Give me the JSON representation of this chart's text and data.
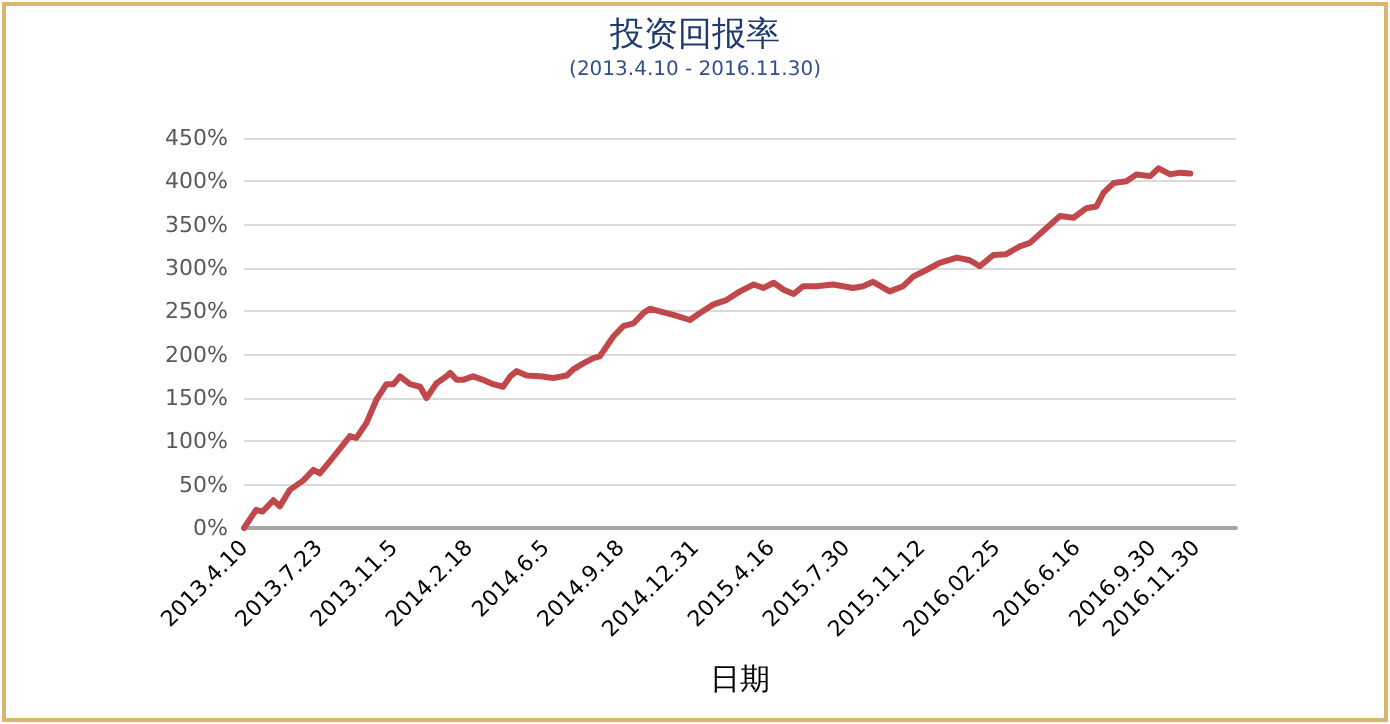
{
  "chart_data": {
    "type": "line",
    "title": "投资回报率",
    "subtitle": "(2013.4.10 - 2016.11.30)",
    "xlabel": "日期",
    "x": [
      "2013-04-10",
      "2013-04-27",
      "2013-05-06",
      "2013-05-21",
      "2013-05-30",
      "2013-06-13",
      "2013-07-02",
      "2013-07-16",
      "2013-07-25",
      "2013-08-13",
      "2013-09-05",
      "2013-09-14",
      "2013-09-28",
      "2013-10-12",
      "2013-10-26",
      "2013-11-05",
      "2013-11-14",
      "2013-11-28",
      "2013-12-12",
      "2013-12-21",
      "2014-01-04",
      "2014-01-18",
      "2014-01-23",
      "2014-02-01",
      "2014-02-10",
      "2014-02-24",
      "2014-03-10",
      "2014-03-24",
      "2014-04-07",
      "2014-04-17",
      "2014-04-26",
      "2014-05-10",
      "2014-05-29",
      "2014-06-16",
      "2014-07-05",
      "2014-07-14",
      "2014-07-28",
      "2014-08-11",
      "2014-08-20",
      "2014-08-30",
      "2014-09-08",
      "2014-09-22",
      "2014-10-06",
      "2014-10-20",
      "2014-10-29",
      "2014-11-12",
      "2014-12-01",
      "2014-12-24",
      "2015-01-07",
      "2015-01-26",
      "2015-02-13",
      "2015-03-04",
      "2015-03-23",
      "2015-04-06",
      "2015-04-20",
      "2015-05-04",
      "2015-05-18",
      "2015-05-31",
      "2015-06-19",
      "2015-07-12",
      "2015-08-09",
      "2015-08-23",
      "2015-09-06",
      "2015-09-29",
      "2015-10-18",
      "2015-11-01",
      "2015-11-20",
      "2015-12-08",
      "2016-01-01",
      "2016-01-19",
      "2016-02-02",
      "2016-02-21",
      "2016-03-10",
      "2016-03-29",
      "2016-04-12",
      "2016-05-01",
      "2016-05-24",
      "2016-06-12",
      "2016-06-30",
      "2016-07-14",
      "2016-07-24",
      "2016-08-07",
      "2016-08-25",
      "2016-09-08",
      "2016-09-27",
      "2016-10-09",
      "2016-10-25",
      "2016-11-08",
      "2016-11-22"
    ],
    "series": [
      {
        "color": "#c0474a",
        "values": [
          0,
          21,
          19,
          32,
          25,
          44,
          55,
          67,
          63,
          82,
          106,
          104,
          121,
          148,
          166,
          166,
          175,
          166,
          163,
          150,
          167,
          175,
          179,
          171,
          171,
          175,
          171,
          166,
          163,
          175,
          181,
          176,
          175,
          173,
          176,
          183,
          190,
          196,
          198,
          210,
          221,
          233,
          236,
          248,
          253,
          250,
          246,
          240,
          248,
          258,
          263,
          273,
          281,
          277,
          283,
          275,
          270,
          279,
          279,
          281,
          277,
          279,
          284,
          273,
          279,
          290,
          298,
          306,
          312,
          309,
          302,
          315,
          316,
          325,
          329,
          343,
          360,
          358,
          369,
          371,
          387,
          398,
          400,
          408,
          406,
          415,
          408,
          410,
          409
        ]
      }
    ],
    "xlim": [
      "2013-04-10",
      "2017-01-25"
    ],
    "xticks": [
      {
        "value": "2013-04-10",
        "label": "2013.4.10"
      },
      {
        "value": "2013-07-23",
        "label": "2013.7.23"
      },
      {
        "value": "2013-11-05",
        "label": "2013.11.5"
      },
      {
        "value": "2014-02-18",
        "label": "2014.2.18"
      },
      {
        "value": "2014-06-05",
        "label": "2014.6.5"
      },
      {
        "value": "2014-09-18",
        "label": "2014.9.18"
      },
      {
        "value": "2014-12-31",
        "label": "2014.12.31"
      },
      {
        "value": "2015-04-16",
        "label": "2015.4.16"
      },
      {
        "value": "2015-07-30",
        "label": "2015.7.30"
      },
      {
        "value": "2015-11-12",
        "label": "2015.11.12"
      },
      {
        "value": "2016-02-25",
        "label": "2016.02.25"
      },
      {
        "value": "2016-06-16",
        "label": "2016.6.16"
      },
      {
        "value": "2016-09-30",
        "label": "2016.9.30"
      },
      {
        "value": "2016-11-30",
        "label": "2016.11.30"
      }
    ],
    "ylim": [
      0,
      450
    ],
    "yticks": [
      {
        "value": 0,
        "label": "0%"
      },
      {
        "value": 50,
        "label": "50%"
      },
      {
        "value": 100,
        "label": "100%"
      },
      {
        "value": 150,
        "label": "150%"
      },
      {
        "value": 200,
        "label": "200%"
      },
      {
        "value": 250,
        "label": "250%"
      },
      {
        "value": 300,
        "label": "300%"
      },
      {
        "value": 350,
        "label": "350%"
      },
      {
        "value": 400,
        "label": "400%"
      },
      {
        "value": 450,
        "label": "450%"
      }
    ],
    "grid": "y",
    "legend": false,
    "marker": "none",
    "line_style": "solid"
  }
}
